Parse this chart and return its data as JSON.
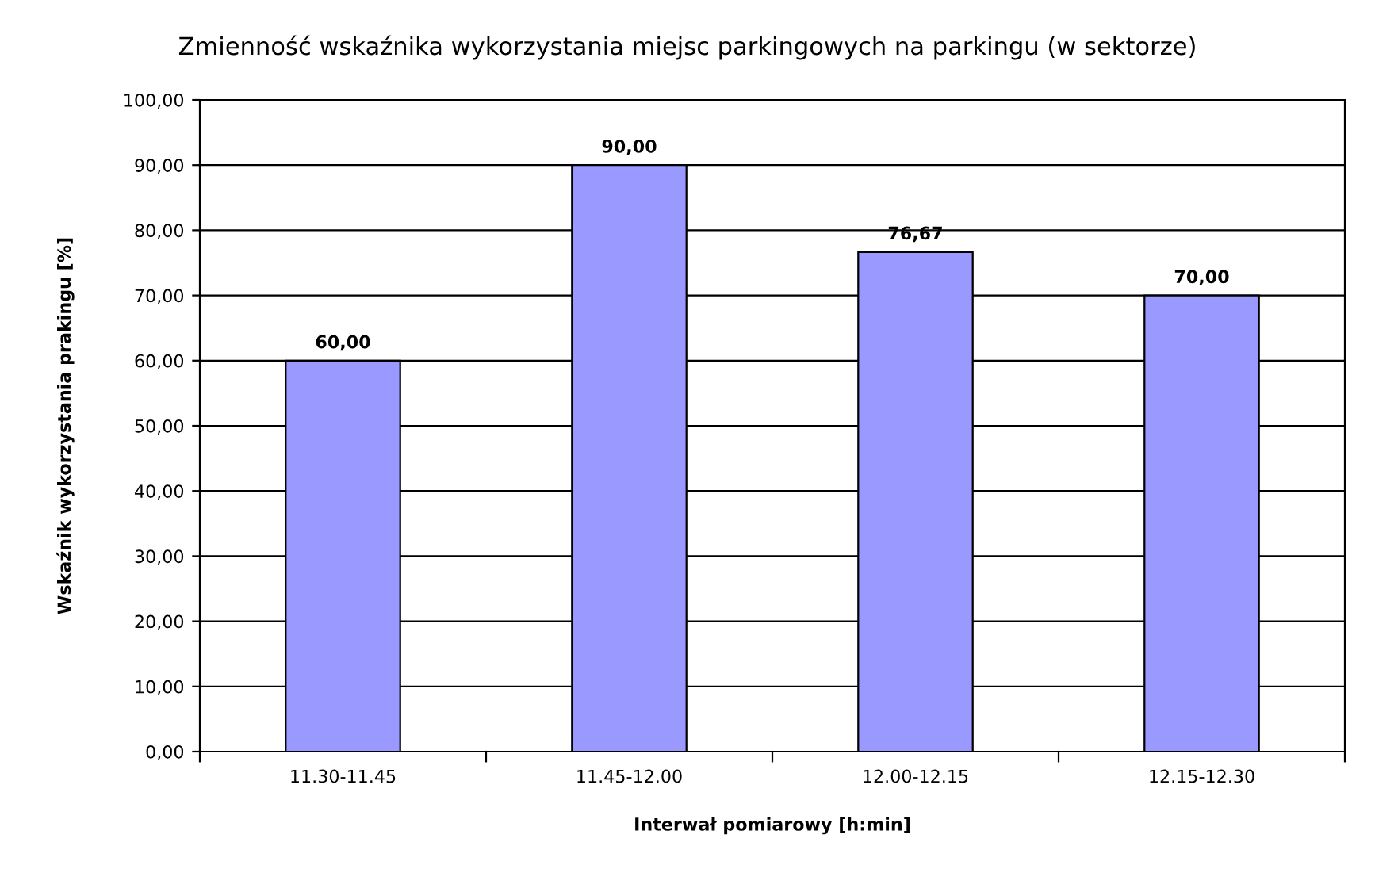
{
  "chart_data": {
    "type": "bar",
    "title": "Zmienność wskaźnika wykorzystania miejsc parkingowych na parkingu (w sektorze)",
    "xlabel": "Interwał pomiarowy [h:min]",
    "ylabel": "Wskaźnik wykorzystania prakingu [%]",
    "categories": [
      "11.30-11.45",
      "11.45-12.00",
      "12.00-12.15",
      "12.15-12.30"
    ],
    "values": [
      60,
      90,
      76.67,
      70
    ],
    "value_labels": [
      "60,00",
      "90,00",
      "76,67",
      "70,00"
    ],
    "color": "#9999ff",
    "ylim": [
      0,
      100
    ],
    "yticks": [
      {
        "value": 0,
        "label": "0,00"
      },
      {
        "value": 10,
        "label": "10,00"
      },
      {
        "value": 20,
        "label": "20,00"
      },
      {
        "value": 30,
        "label": "30,00"
      },
      {
        "value": 40,
        "label": "40,00"
      },
      {
        "value": 50,
        "label": "50,00"
      },
      {
        "value": 60,
        "label": "60,00"
      },
      {
        "value": 70,
        "label": "70,00"
      },
      {
        "value": 80,
        "label": "80,00"
      },
      {
        "value": 90,
        "label": "90,00"
      },
      {
        "value": 100,
        "label": "100,00"
      }
    ],
    "grid": "y",
    "legend": false
  }
}
